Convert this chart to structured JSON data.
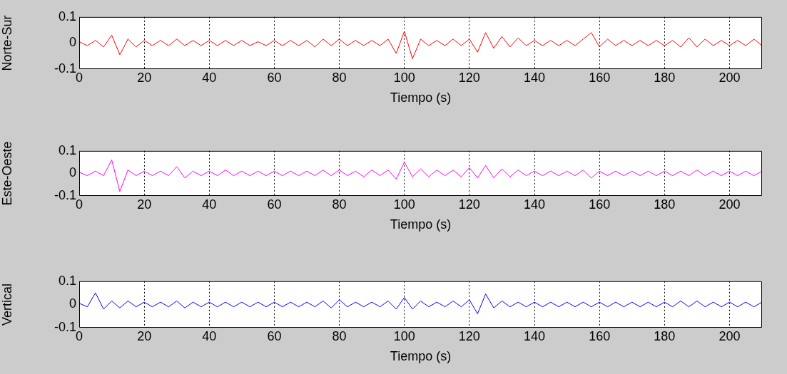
{
  "chart_data": [
    {
      "type": "line",
      "xlabel": "Tiempo (s)",
      "ylabel": "Norte-Sur",
      "xlim": [
        0,
        210
      ],
      "xticks": [
        0,
        20,
        40,
        60,
        80,
        100,
        120,
        140,
        160,
        180,
        200
      ],
      "ylim": [
        -0.1,
        0.1
      ],
      "yticks": [
        -0.1,
        0,
        0.1
      ],
      "grid": "x",
      "x": [
        0,
        2.5,
        5,
        7.5,
        10,
        12.5,
        15,
        17.5,
        20,
        22.5,
        25,
        27.5,
        30,
        32.5,
        35,
        37.5,
        40,
        42.5,
        45,
        47.5,
        50,
        52.5,
        55,
        57.5,
        60,
        62.5,
        65,
        67.5,
        70,
        72.5,
        75,
        77.5,
        80,
        82.5,
        85,
        87.5,
        90,
        92.5,
        95,
        97.5,
        100,
        102.5,
        105,
        107.5,
        110,
        112.5,
        115,
        117.5,
        120,
        122.5,
        125,
        127.5,
        130,
        132.5,
        135,
        137.5,
        140,
        142.5,
        145,
        147.5,
        150,
        152.5,
        155,
        157.5,
        160,
        162.5,
        165,
        167.5,
        170,
        172.5,
        175,
        177.5,
        180,
        182.5,
        185,
        187.5,
        190,
        192.5,
        195,
        197.5,
        200,
        202.5,
        205,
        207.5,
        210
      ],
      "series": [
        {
          "color": "#ff0000",
          "values": [
            0.005,
            -0.01,
            0.01,
            -0.015,
            0.03,
            -0.045,
            0.015,
            -0.015,
            0.01,
            -0.01,
            0.01,
            -0.01,
            0.015,
            -0.01,
            0.01,
            -0.01,
            0.01,
            -0.01,
            0.01,
            -0.01,
            0.01,
            -0.01,
            0.005,
            -0.01,
            0.01,
            -0.01,
            0.01,
            -0.01,
            0.01,
            -0.015,
            0.015,
            -0.01,
            0.015,
            -0.01,
            0.01,
            -0.01,
            0.01,
            -0.01,
            0.015,
            -0.04,
            0.045,
            -0.06,
            0.015,
            -0.01,
            0.01,
            -0.01,
            0.015,
            -0.01,
            0.015,
            -0.035,
            0.04,
            -0.02,
            0.025,
            -0.015,
            0.02,
            -0.01,
            0.01,
            -0.01,
            0.01,
            -0.01,
            0.01,
            -0.01,
            0.015,
            0.04,
            -0.015,
            0.015,
            -0.01,
            0.01,
            -0.01,
            0.01,
            -0.01,
            0.01,
            -0.01,
            0.01,
            -0.015,
            0.02,
            -0.015,
            0.015,
            -0.01,
            0.01,
            -0.01,
            0.01,
            -0.01,
            0.015,
            -0.01
          ]
        }
      ]
    },
    {
      "type": "line",
      "xlabel": "Tiempo (s)",
      "ylabel": "Este-Oeste",
      "xlim": [
        0,
        210
      ],
      "xticks": [
        0,
        20,
        40,
        60,
        80,
        100,
        120,
        140,
        160,
        180,
        200
      ],
      "ylim": [
        -0.1,
        0.1
      ],
      "yticks": [
        -0.1,
        0,
        0.1
      ],
      "grid": "x",
      "x": [
        0,
        2.5,
        5,
        7.5,
        10,
        12.5,
        15,
        17.5,
        20,
        22.5,
        25,
        27.5,
        30,
        32.5,
        35,
        37.5,
        40,
        42.5,
        45,
        47.5,
        50,
        52.5,
        55,
        57.5,
        60,
        62.5,
        65,
        67.5,
        70,
        72.5,
        75,
        77.5,
        80,
        82.5,
        85,
        87.5,
        90,
        92.5,
        95,
        97.5,
        100,
        102.5,
        105,
        107.5,
        110,
        112.5,
        115,
        117.5,
        120,
        122.5,
        125,
        127.5,
        130,
        132.5,
        135,
        137.5,
        140,
        142.5,
        145,
        147.5,
        150,
        152.5,
        155,
        157.5,
        160,
        162.5,
        165,
        167.5,
        170,
        172.5,
        175,
        177.5,
        180,
        182.5,
        185,
        187.5,
        190,
        192.5,
        195,
        197.5,
        200,
        202.5,
        205,
        207.5,
        210
      ],
      "series": [
        {
          "color": "#ff00ff",
          "values": [
            0.005,
            -0.01,
            0.01,
            -0.01,
            0.06,
            -0.08,
            0.015,
            -0.01,
            0.01,
            -0.01,
            0.01,
            -0.01,
            0.03,
            -0.02,
            0.01,
            -0.01,
            0.01,
            -0.01,
            0.015,
            -0.01,
            0.01,
            -0.01,
            0.01,
            -0.01,
            0.01,
            -0.01,
            0.01,
            -0.01,
            0.01,
            -0.01,
            0.015,
            -0.01,
            0.015,
            -0.01,
            0.01,
            -0.015,
            0.015,
            -0.01,
            0.015,
            -0.025,
            0.05,
            -0.015,
            0.02,
            -0.015,
            0.015,
            -0.01,
            0.015,
            -0.015,
            0.025,
            -0.02,
            0.035,
            -0.02,
            0.02,
            -0.015,
            0.015,
            -0.01,
            0.01,
            -0.01,
            0.01,
            -0.01,
            0.01,
            -0.01,
            0.015,
            -0.02,
            0.01,
            -0.01,
            0.01,
            -0.01,
            0.01,
            -0.01,
            0.01,
            -0.01,
            0.01,
            -0.01,
            0.01,
            -0.01,
            0.015,
            -0.01,
            0.01,
            -0.01,
            0.01,
            -0.01,
            0.01,
            -0.01,
            0.01
          ]
        }
      ]
    },
    {
      "type": "line",
      "xlabel": "Tiempo (s)",
      "ylabel": "Vertical",
      "xlim": [
        0,
        210
      ],
      "xticks": [
        0,
        20,
        40,
        60,
        80,
        100,
        120,
        140,
        160,
        180,
        200
      ],
      "ylim": [
        -0.1,
        0.1
      ],
      "yticks": [
        -0.1,
        0,
        0.1
      ],
      "grid": "x",
      "x": [
        0,
        2.5,
        5,
        7.5,
        10,
        12.5,
        15,
        17.5,
        20,
        22.5,
        25,
        27.5,
        30,
        32.5,
        35,
        37.5,
        40,
        42.5,
        45,
        47.5,
        50,
        52.5,
        55,
        57.5,
        60,
        62.5,
        65,
        67.5,
        70,
        72.5,
        75,
        77.5,
        80,
        82.5,
        85,
        87.5,
        90,
        92.5,
        95,
        97.5,
        100,
        102.5,
        105,
        107.5,
        110,
        112.5,
        115,
        117.5,
        120,
        122.5,
        125,
        127.5,
        130,
        132.5,
        135,
        137.5,
        140,
        142.5,
        145,
        147.5,
        150,
        152.5,
        155,
        157.5,
        160,
        162.5,
        165,
        167.5,
        170,
        172.5,
        175,
        177.5,
        180,
        182.5,
        185,
        187.5,
        190,
        192.5,
        195,
        197.5,
        200,
        202.5,
        205,
        207.5,
        210
      ],
      "series": [
        {
          "color": "#0000ff",
          "values": [
            0.005,
            -0.01,
            0.05,
            -0.02,
            0.015,
            -0.015,
            0.015,
            -0.01,
            0.01,
            -0.01,
            0.01,
            -0.01,
            0.015,
            -0.015,
            0.01,
            -0.01,
            0.01,
            -0.01,
            0.01,
            -0.01,
            0.01,
            -0.01,
            0.01,
            -0.01,
            0.01,
            -0.01,
            0.01,
            -0.01,
            0.01,
            -0.01,
            0.015,
            -0.015,
            0.02,
            -0.01,
            0.01,
            -0.01,
            0.01,
            -0.01,
            0.015,
            -0.02,
            0.03,
            -0.02,
            0.015,
            -0.01,
            0.01,
            -0.01,
            0.015,
            -0.01,
            0.02,
            -0.04,
            0.045,
            -0.015,
            0.015,
            -0.01,
            0.01,
            -0.01,
            0.01,
            -0.01,
            0.01,
            -0.01,
            0.01,
            -0.01,
            0.01,
            -0.01,
            0.01,
            -0.01,
            0.01,
            -0.01,
            0.01,
            -0.01,
            0.01,
            -0.01,
            0.01,
            -0.01,
            0.015,
            -0.01,
            0.015,
            -0.01,
            0.01,
            -0.01,
            0.01,
            -0.01,
            0.01,
            -0.01,
            0.01
          ]
        }
      ]
    }
  ]
}
